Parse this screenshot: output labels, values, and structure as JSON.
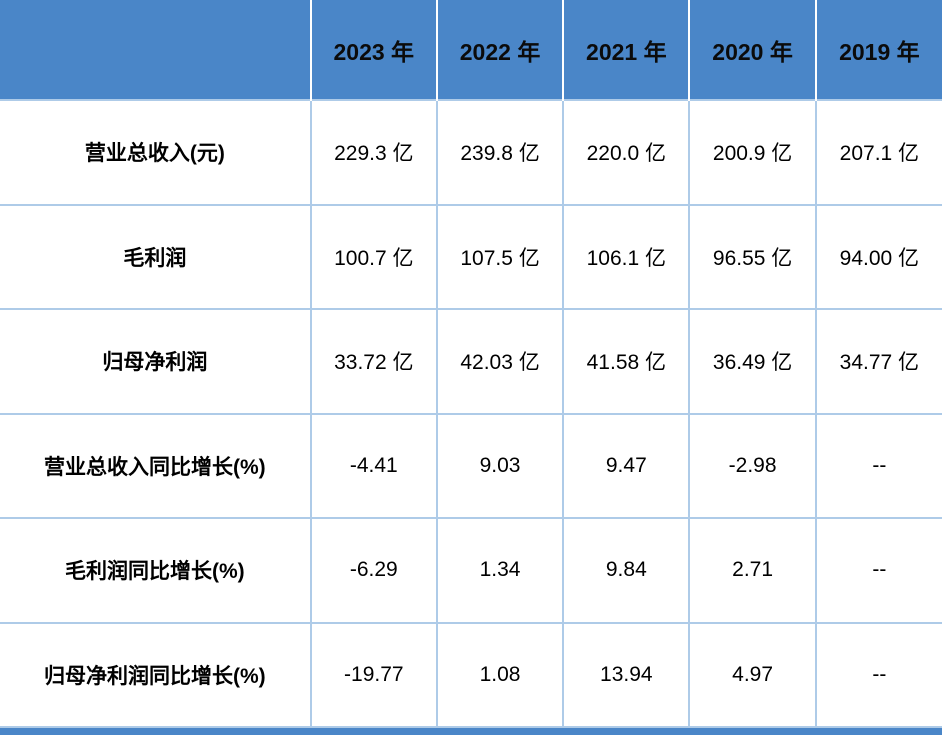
{
  "colors": {
    "header_bg": "#4a86c8",
    "header_text": "#0b0b0b",
    "grid_border": "#aecbe8",
    "body_text": "#000000",
    "bottom_bar": "#4a86c8",
    "header_divider": "#ffffff"
  },
  "chart_data": {
    "type": "table",
    "title": "",
    "columns": [
      "",
      "2023 年",
      "2022 年",
      "2021 年",
      "2020 年",
      "2019 年"
    ],
    "rows": [
      {
        "label": "营业总收入(元)",
        "values": [
          "229.3 亿",
          "239.8 亿",
          "220.0 亿",
          "200.9 亿",
          "207.1 亿"
        ]
      },
      {
        "label": "毛利润",
        "values": [
          "100.7 亿",
          "107.5 亿",
          "106.1 亿",
          "96.55 亿",
          "94.00 亿"
        ]
      },
      {
        "label": "归母净利润",
        "values": [
          "33.72 亿",
          "42.03 亿",
          "41.58 亿",
          "36.49 亿",
          "34.77 亿"
        ]
      },
      {
        "label": "营业总收入同比增长(%)",
        "values": [
          "-4.41",
          "9.03",
          "9.47",
          "-2.98",
          "--"
        ]
      },
      {
        "label": "毛利润同比增长(%)",
        "values": [
          "-6.29",
          "1.34",
          "9.84",
          "2.71",
          "--"
        ]
      },
      {
        "label": "归母净利润同比增长(%)",
        "values": [
          "-19.77",
          "1.08",
          "13.94",
          "4.97",
          "--"
        ]
      }
    ],
    "layout": {
      "grid": true,
      "header_position": "top",
      "label_column_position": "left"
    }
  }
}
